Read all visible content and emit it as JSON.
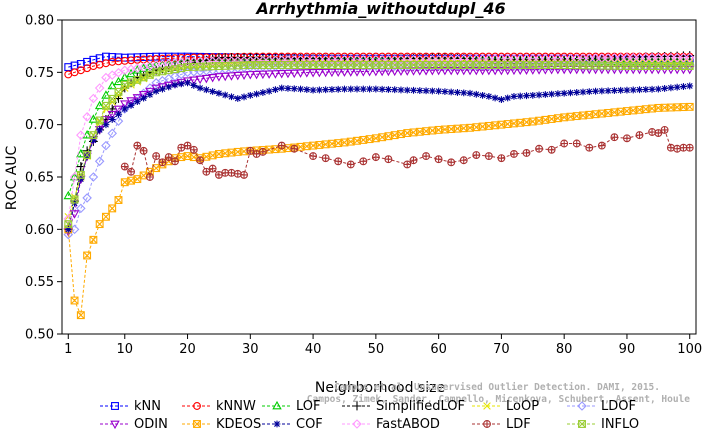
{
  "chart_data": {
    "type": "line",
    "title": "Arrhythmia_withoutdupl_46",
    "xlabel": "Neighborhood size",
    "ylabel": "ROC AUC",
    "xlim": [
      0,
      101
    ],
    "ylim": [
      0.5,
      0.8
    ],
    "xticks": [
      1,
      10,
      20,
      30,
      40,
      50,
      60,
      70,
      80,
      90,
      100
    ],
    "yticks": [
      "0.50",
      "0.55",
      "0.60",
      "0.65",
      "0.70",
      "0.75",
      "0.80"
    ],
    "legend_position": "bottom",
    "watermark": [
      "Campos et al. Unsupervised Outlier Detection. DAMI, 2015.",
      "Campos, Zimek, Sander, Campello, Micenkova, Schubert, Assent, Houle"
    ],
    "series": [
      {
        "name": "kNN",
        "color": "#0000ff",
        "marker": "square",
        "points": [
          [
            1,
            0.755
          ],
          [
            3,
            0.758
          ],
          [
            5,
            0.762
          ],
          [
            7,
            0.765
          ],
          [
            10,
            0.764
          ],
          [
            15,
            0.765
          ],
          [
            20,
            0.765
          ],
          [
            30,
            0.764
          ],
          [
            40,
            0.763
          ],
          [
            50,
            0.763
          ],
          [
            60,
            0.763
          ],
          [
            70,
            0.763
          ],
          [
            80,
            0.763
          ],
          [
            90,
            0.762
          ],
          [
            100,
            0.762
          ]
        ]
      },
      {
        "name": "kNNW",
        "color": "#ff0000",
        "marker": "circle",
        "points": [
          [
            1,
            0.748
          ],
          [
            3,
            0.752
          ],
          [
            5,
            0.756
          ],
          [
            8,
            0.76
          ],
          [
            12,
            0.762
          ],
          [
            20,
            0.764
          ],
          [
            30,
            0.765
          ],
          [
            40,
            0.765
          ],
          [
            50,
            0.765
          ],
          [
            60,
            0.765
          ],
          [
            70,
            0.765
          ],
          [
            80,
            0.765
          ],
          [
            90,
            0.765
          ],
          [
            100,
            0.765
          ]
        ]
      },
      {
        "name": "LOF",
        "color": "#00cc00",
        "marker": "triangle",
        "points": [
          [
            1,
            0.632
          ],
          [
            2,
            0.65
          ],
          [
            3,
            0.672
          ],
          [
            4,
            0.69
          ],
          [
            5,
            0.705
          ],
          [
            6,
            0.718
          ],
          [
            7,
            0.728
          ],
          [
            8,
            0.737
          ],
          [
            10,
            0.745
          ],
          [
            12,
            0.752
          ],
          [
            15,
            0.757
          ],
          [
            20,
            0.76
          ],
          [
            30,
            0.762
          ],
          [
            40,
            0.762
          ],
          [
            50,
            0.762
          ],
          [
            60,
            0.762
          ],
          [
            70,
            0.761
          ],
          [
            80,
            0.761
          ],
          [
            90,
            0.76
          ],
          [
            100,
            0.76
          ]
        ]
      },
      {
        "name": "SimplifiedLOF",
        "color": "#000000",
        "marker": "plus",
        "points": [
          [
            1,
            0.6
          ],
          [
            2,
            0.627
          ],
          [
            3,
            0.66
          ],
          [
            4,
            0.675
          ],
          [
            5,
            0.684
          ],
          [
            6,
            0.695
          ],
          [
            7,
            0.705
          ],
          [
            8,
            0.715
          ],
          [
            9,
            0.725
          ],
          [
            10,
            0.735
          ],
          [
            12,
            0.745
          ],
          [
            15,
            0.752
          ],
          [
            20,
            0.758
          ],
          [
            25,
            0.764
          ],
          [
            30,
            0.764
          ],
          [
            40,
            0.763
          ],
          [
            50,
            0.762
          ],
          [
            60,
            0.764
          ],
          [
            70,
            0.762
          ],
          [
            80,
            0.763
          ],
          [
            90,
            0.764
          ],
          [
            100,
            0.766
          ]
        ]
      },
      {
        "name": "LoOP",
        "color": "#e6e600",
        "marker": "x",
        "points": [
          [
            1,
            0.612
          ],
          [
            3,
            0.65
          ],
          [
            5,
            0.69
          ],
          [
            7,
            0.715
          ],
          [
            10,
            0.735
          ],
          [
            15,
            0.75
          ],
          [
            20,
            0.756
          ],
          [
            30,
            0.759
          ],
          [
            40,
            0.76
          ],
          [
            50,
            0.76
          ],
          [
            60,
            0.761
          ],
          [
            70,
            0.76
          ],
          [
            80,
            0.76
          ],
          [
            90,
            0.759
          ],
          [
            100,
            0.759
          ]
        ]
      },
      {
        "name": "LDOF",
        "color": "#9999ff",
        "marker": "diamond",
        "points": [
          [
            1,
            0.595
          ],
          [
            2,
            0.6
          ],
          [
            3,
            0.62
          ],
          [
            4,
            0.63
          ],
          [
            5,
            0.65
          ],
          [
            7,
            0.68
          ],
          [
            10,
            0.715
          ],
          [
            15,
            0.74
          ],
          [
            20,
            0.75
          ],
          [
            30,
            0.755
          ],
          [
            40,
            0.756
          ],
          [
            50,
            0.756
          ],
          [
            60,
            0.756
          ],
          [
            70,
            0.756
          ],
          [
            80,
            0.756
          ],
          [
            90,
            0.756
          ],
          [
            100,
            0.757
          ]
        ]
      },
      {
        "name": "ODIN",
        "color": "#9900cc",
        "marker": "triangle-down",
        "points": [
          [
            1,
            0.598
          ],
          [
            2,
            0.615
          ],
          [
            3,
            0.648
          ],
          [
            4,
            0.67
          ],
          [
            5,
            0.686
          ],
          [
            7,
            0.705
          ],
          [
            10,
            0.72
          ],
          [
            15,
            0.735
          ],
          [
            20,
            0.742
          ],
          [
            25,
            0.746
          ],
          [
            30,
            0.748
          ],
          [
            40,
            0.75
          ],
          [
            50,
            0.751
          ],
          [
            60,
            0.752
          ],
          [
            70,
            0.752
          ],
          [
            80,
            0.753
          ],
          [
            90,
            0.753
          ],
          [
            100,
            0.753
          ]
        ]
      },
      {
        "name": "KDEOS",
        "color": "#ffaa00",
        "marker": "square-x",
        "points": [
          [
            1,
            0.6
          ],
          [
            2,
            0.532
          ],
          [
            3,
            0.518
          ],
          [
            4,
            0.575
          ],
          [
            5,
            0.59
          ],
          [
            6,
            0.605
          ],
          [
            7,
            0.612
          ],
          [
            8,
            0.62
          ],
          [
            9,
            0.628
          ],
          [
            10,
            0.645
          ],
          [
            12,
            0.648
          ],
          [
            14,
            0.655
          ],
          [
            16,
            0.662
          ],
          [
            18,
            0.668
          ],
          [
            20,
            0.67
          ],
          [
            22,
            0.668
          ],
          [
            25,
            0.672
          ],
          [
            28,
            0.674
          ],
          [
            30,
            0.675
          ],
          [
            35,
            0.677
          ],
          [
            40,
            0.68
          ],
          [
            45,
            0.683
          ],
          [
            50,
            0.687
          ],
          [
            55,
            0.692
          ],
          [
            60,
            0.695
          ],
          [
            65,
            0.697
          ],
          [
            70,
            0.7
          ],
          [
            75,
            0.703
          ],
          [
            80,
            0.707
          ],
          [
            85,
            0.71
          ],
          [
            90,
            0.713
          ],
          [
            95,
            0.716
          ],
          [
            100,
            0.717
          ]
        ]
      },
      {
        "name": "COF",
        "color": "#000099",
        "marker": "asterisk",
        "points": [
          [
            1,
            0.6
          ],
          [
            2,
            0.625
          ],
          [
            3,
            0.648
          ],
          [
            4,
            0.67
          ],
          [
            5,
            0.685
          ],
          [
            6,
            0.695
          ],
          [
            8,
            0.705
          ],
          [
            10,
            0.715
          ],
          [
            12,
            0.722
          ],
          [
            15,
            0.732
          ],
          [
            18,
            0.738
          ],
          [
            20,
            0.74
          ],
          [
            22,
            0.735
          ],
          [
            25,
            0.73
          ],
          [
            28,
            0.725
          ],
          [
            30,
            0.728
          ],
          [
            33,
            0.732
          ],
          [
            35,
            0.735
          ],
          [
            38,
            0.734
          ],
          [
            40,
            0.733
          ],
          [
            45,
            0.734
          ],
          [
            50,
            0.734
          ],
          [
            55,
            0.733
          ],
          [
            60,
            0.732
          ],
          [
            65,
            0.73
          ],
          [
            68,
            0.727
          ],
          [
            70,
            0.724
          ],
          [
            72,
            0.727
          ],
          [
            75,
            0.728
          ],
          [
            80,
            0.73
          ],
          [
            85,
            0.732
          ],
          [
            90,
            0.733
          ],
          [
            95,
            0.734
          ],
          [
            100,
            0.737
          ]
        ]
      },
      {
        "name": "FastABOD",
        "color": "#ff99ff",
        "marker": "diamond",
        "points": [
          [
            1,
            0.61
          ],
          [
            3,
            0.69
          ],
          [
            5,
            0.725
          ],
          [
            7,
            0.745
          ],
          [
            10,
            0.752
          ],
          [
            15,
            0.757
          ],
          [
            20,
            0.76
          ],
          [
            30,
            0.761
          ],
          [
            40,
            0.762
          ],
          [
            50,
            0.762
          ],
          [
            60,
            0.762
          ],
          [
            70,
            0.763
          ],
          [
            80,
            0.763
          ],
          [
            90,
            0.764
          ],
          [
            100,
            0.764
          ]
        ]
      },
      {
        "name": "LDF",
        "color": "#aa3333",
        "marker": "circle-plus",
        "points": [
          [
            10,
            0.66
          ],
          [
            11,
            0.655
          ],
          [
            12,
            0.68
          ],
          [
            13,
            0.675
          ],
          [
            14,
            0.65
          ],
          [
            15,
            0.67
          ],
          [
            16,
            0.664
          ],
          [
            17,
            0.669
          ],
          [
            18,
            0.665
          ],
          [
            19,
            0.678
          ],
          [
            20,
            0.68
          ],
          [
            21,
            0.676
          ],
          [
            22,
            0.666
          ],
          [
            23,
            0.655
          ],
          [
            24,
            0.658
          ],
          [
            25,
            0.652
          ],
          [
            26,
            0.654
          ],
          [
            27,
            0.654
          ],
          [
            28,
            0.653
          ],
          [
            29,
            0.652
          ],
          [
            30,
            0.675
          ],
          [
            31,
            0.672
          ],
          [
            32,
            0.674
          ],
          [
            35,
            0.68
          ],
          [
            37,
            0.677
          ],
          [
            40,
            0.67
          ],
          [
            42,
            0.668
          ],
          [
            44,
            0.665
          ],
          [
            46,
            0.662
          ],
          [
            48,
            0.665
          ],
          [
            50,
            0.669
          ],
          [
            52,
            0.667
          ],
          [
            55,
            0.662
          ],
          [
            56,
            0.666
          ],
          [
            58,
            0.67
          ],
          [
            60,
            0.667
          ],
          [
            62,
            0.664
          ],
          [
            64,
            0.666
          ],
          [
            66,
            0.671
          ],
          [
            68,
            0.67
          ],
          [
            70,
            0.668
          ],
          [
            72,
            0.672
          ],
          [
            74,
            0.673
          ],
          [
            76,
            0.677
          ],
          [
            78,
            0.676
          ],
          [
            80,
            0.682
          ],
          [
            82,
            0.682
          ],
          [
            84,
            0.678
          ],
          [
            86,
            0.68
          ],
          [
            88,
            0.688
          ],
          [
            90,
            0.687
          ],
          [
            92,
            0.69
          ],
          [
            94,
            0.693
          ],
          [
            95,
            0.692
          ],
          [
            96,
            0.695
          ],
          [
            97,
            0.678
          ],
          [
            98,
            0.677
          ],
          [
            99,
            0.678
          ],
          [
            100,
            0.678
          ]
        ]
      },
      {
        "name": "INFLO",
        "color": "#99cc33",
        "marker": "square-x",
        "points": [
          [
            1,
            0.605
          ],
          [
            3,
            0.652
          ],
          [
            5,
            0.69
          ],
          [
            7,
            0.718
          ],
          [
            10,
            0.738
          ],
          [
            15,
            0.75
          ],
          [
            20,
            0.755
          ],
          [
            30,
            0.757
          ],
          [
            40,
            0.757
          ],
          [
            50,
            0.757
          ],
          [
            60,
            0.757
          ],
          [
            70,
            0.757
          ],
          [
            80,
            0.757
          ],
          [
            90,
            0.756
          ],
          [
            100,
            0.756
          ]
        ]
      }
    ],
    "legend_rows": [
      [
        "kNN",
        "kNNW",
        "LOF",
        "SimplifiedLOF",
        "LoOP",
        "LDOF"
      ],
      [
        "ODIN",
        "KDEOS",
        "COF",
        "FastABOD",
        "LDF",
        "INFLO"
      ]
    ]
  }
}
